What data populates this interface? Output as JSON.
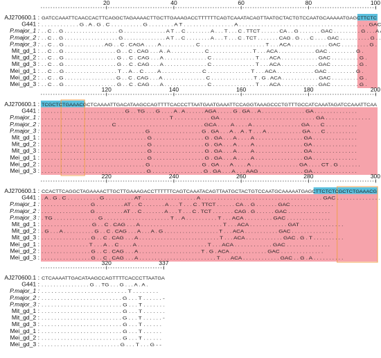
{
  "blocks": [
    {
      "pos_start": 1,
      "ticks": [
        {
          "pos": 20,
          "label": "20"
        },
        {
          "pos": 40,
          "label": "40"
        },
        {
          "pos": 60,
          "label": "60"
        },
        {
          "pos": 80,
          "label": "80"
        },
        {
          "pos": 100,
          "label": "100"
        }
      ],
      "rows": [
        {
          "label": "AJ270600.1 :",
          "italic": false,
          "seq": "GATCCAAATTCAACCACTTCAGGCTAGAAAACTTGCTTGAAAGACCTTTTTTCAGTCAAATACAGTTAATGCTACTGTCCAATGCAAAAATGAGCTTCTC"
        },
        {
          "label": "G441 :",
          "italic": false,
          "seq": ". . . . . . . . . . . . G . A . G . C . . . . . . . . . . G . . . . . . . . A T . . . . . . . . . . . . . . . . A . . . . . . . . . . . . . . . . . . . . . . . . . . . . . . . . . . . . . . . . . GAC . . . . ."
        },
        {
          "label": "P.major_1 :",
          "italic": true,
          "seq": ". . C . . G . . . . . . . . . . . . . . . . . . G . . . . . . . . . . . . . . A T . . C . . . . . . . . A . . . T . . . C . TTCT . . . . . . CA . . G . . . . . . . GAC . . . . . . . . . G . . . A A"
        },
        {
          "label": "P.major_2 :",
          "italic": true,
          "seq": ". . C . . G . . . . . . . . . . . . . . . . . . G . . . . . . . . . . . . . . A T . . C . . . . . . . . A . . . T . . . C . TCT . . . . . . . CAG . G . . . C . . . . GAC . . . . . . . . . . G . . ."
        },
        {
          "label": "P.major_3 :",
          "italic": true,
          "seq": ". . C . . G . . . . . . . . . . . . . AG . . C . CAGA . . . . A . . . . . . . . . . . C . . . . . . . . . . . . . . . . . . . . . T . . . ACA . . . . . . . . . . . . GAC . . . . . . . . . G ."
        },
        {
          "label": "Mit_gd_1 :",
          "italic": false,
          "seq": ". . C . . G . . . . . . . . . . . . . . . . . G . . C . CAG . . . A . A . . . . . . . . . . . C . . . . . . . . . . . . . . T . . . ACA . . . . . . . . . . . . GAC . . . . . . . . . G ."
        },
        {
          "label": "Mit_gd_2 :",
          "italic": false,
          "seq": ". . C . . G . . . . . . . . . . . . . . . . . G . . C . CAG . . . A . . . . . . . . . . . . . . C . . . . . . . . . . . . . . T . . . ACA . . . . . . . . . . . . GAC . . . . . . . . . G ."
        },
        {
          "label": "Mit_gd_3 :",
          "italic": false,
          "seq": ". . C . . G . . . . . . . . . . . . . . . . . G . . C . CAG . . . A . . . . . . . . . . . . . . C . . . . . . . . . . . . . . T . . . ACA . . . . . . . . . . . . GAC . . . . . . . . . G ."
        },
        {
          "label": "Mei_gd_1 :",
          "italic": false,
          "seq": ". . C . . G . . . . . . . . . . . . . . . . . T . . A . . C . . . . A . . . . . . . . . . . . . C . . . . . . . . . . . . . . T . . . ACA . . . . . . . . . . . . GAC . . . . . . . . . G ."
        },
        {
          "label": "Mei_gd_2 :",
          "italic": false,
          "seq": ". . C . . G . . . . . . . . . . . . . . . . . G . . C . CAG . . . A . . . . . . . . . . . . . . C . . . . . . . . . . . . . . T . G . ACA . . . . . . . . . . . . GAC . . . . . . . . . G ."
        },
        {
          "label": "Mei_gd_3 :",
          "italic": false,
          "seq": ". . C . . G . . . . . . . . . . . . . . . . . G . . C . CAG . . . A . . . . . . . . . . . . . . C . . . . . . . . . . . . . . T . . . ACA . . . . . . . . . . . . GAC . . . . . . . . . G ."
        }
      ]
    },
    {
      "pos_start": 101,
      "ticks": [
        {
          "pos": 120,
          "label": "120"
        },
        {
          "pos": 140,
          "label": "140"
        },
        {
          "pos": 160,
          "label": "160"
        },
        {
          "pos": 180,
          "label": "180"
        },
        {
          "pos": 200,
          "label": "200"
        }
      ],
      "rows": [
        {
          "label": "AJ270600.1 :",
          "italic": false,
          "seq": "TCGCTCTGAAACGCTCAAAATTGACATAAGCCAGTTTTCACCCTTAATGAATGAAATTCCAGGTAAAGCCCTGTTTGCCATCAAATAGATCCAAATTCAA"
        },
        {
          "label": "G441 :",
          "italic": false,
          "seq": ". . . . . . . . . . . . . . . . . . . . . . . . . . . G . . TG . . . G . . . . A . A . . . . . . AGA . . . . . G . GA . . A . . . . . . . . . . . . . . GA . . . . . . . . . . . . . ."
        },
        {
          "label": "P.major_1 :",
          "italic": true,
          "seq": ". . . . . . . . . . . . . . . . . . . . . . . . . . . . . . . . . . . . . . . T . . . . . . . . . . . GA . . . . . . . . . . . . . . . . . . . . . . . . . . . . . GA . . . . . . . . . . . . . ."
        },
        {
          "label": "P.major_2 :",
          "italic": true,
          "seq": ". . . . . . . . . . . . . . . . . . . . . . C . . . . . . . . . . . . . . . . . . . . . . . . . . . GCA . . . . A . . . . A . . . . . . . . . . . . . . . GA . . . C . . . . . . . . . ."
        },
        {
          "label": "P.major_3 :",
          "italic": true,
          "seq": ". . . . . . . . . . . . . . . . . . . . . . . . . . . . . . . . . G . . . . . . . . . . . . . . . . G . GA . . . A . . A . T . . . A . . . . . . . . . . . GA . . . C . . . . . . . . . ."
        },
        {
          "label": "Mit_gd_1 :",
          "italic": false,
          "seq": ". . . . . . . . . . . . . . . . . . . . . . . . . . . . . . . . . G . . . . . . . . . . . . . . . . G . GA . . . A . . . . A . . . . . . . . . . . . . . . GA . . . . . . . . . . . . . ."
        },
        {
          "label": "Mit_gd_2 :",
          "italic": false,
          "seq": ". . . . . . . . . . . . . . . . . . . . . . . . . . . . . . . . . G . . . . . . . . . . . . . . . . G . GA . . . A . . . . A . . . . . . . . . . . . . . . GA . . . . . . . . . . . . . ."
        },
        {
          "label": "Mit_gd_3 :",
          "italic": false,
          "seq": ". . . . . . . . . . . . . . . . . . . . . . . . . . . . . . . . . G . . . . . . . . . . . . . . . . G . GA . . . A . . . . A . . . . . . . . . . . . . . . GA . . . . . . . . . . . . . ."
        },
        {
          "label": "Mei_gd_1 :",
          "italic": false,
          "seq": ". . . . . . . . . . . . . . . . . . . . . . . . . . . . . . . . . G . . . . . . . . . . . . . . . . G . GA . . . A . . . . A . . . . . . . . . . . . . . . GA . . . . . . . . . . . . . ."
        },
        {
          "label": "Mei_gd_2 :",
          "italic": false,
          "seq": ". . . . . . . . . . . . . . . . . . . . . . . . . . . . . . . . . G . . . . . . . . . . . . . . . . G . GA . . . A . . . . A . . . . . . . . . . . . . . . GA . . . . CT . G . . . . . . ."
        },
        {
          "label": "Mei_gd_3 :",
          "italic": false,
          "seq": ". . . . . . . . . . . . . . . . . . . . . . . . . . . . . . . . . G . . . . . . . . . . . . . . . . G . GA . . . A . . . AAG . . . . . . . . . . . . . . GA . . . . . . . . . . . . . ."
        }
      ]
    },
    {
      "pos_start": 201,
      "ticks": [
        {
          "pos": 220,
          "label": "220"
        },
        {
          "pos": 240,
          "label": "240"
        },
        {
          "pos": 260,
          "label": "260"
        },
        {
          "pos": 280,
          "label": "280"
        },
        {
          "pos": 300,
          "label": "300"
        }
      ],
      "rows": [
        {
          "label": "AJ270600.1 :",
          "italic": false,
          "seq": "CCACTTCAGGCTAGAAAACTTGCTTGAAAGACCTTTTTTCAGTCAAATACAGTTAATGCTACTGTCCAATGCAAAAATGAGCTTCTCTCGCTCTGAAACG"
        },
        {
          "label": "G441 :",
          "italic": false,
          "seq": ". A . G . C . . . . . . . . . . G . . . . . . . . . AT . . . . . . . . . . . . . . . . . A . . . . . . . . . . . . . . . . . . . . . . . . . . . . . . . . . . . . . . GAC . . . . . . . . . . . . . ."
        },
        {
          "label": "P.major_1 :",
          "italic": true,
          "seq": ". . . . . . . . . . . . . . . . G . . . . . . . . . AT . . C . . . . . . . A . . . T . . . C . TTCT . . . . . . CA . . G . . . . . . . GAC . . . . . . . . . . . . . ."
        },
        {
          "label": "P.major_2 :",
          "italic": true,
          "seq": ". . . . . . . . . . . . . . . . G . . . . . . . . . AT . . C . . . . . . . A . . . T . . . C . TCT . . . . . . . CAG . G . . . . . . GAC . . . . . . . . . . . . . ."
        },
        {
          "label": "P.major_3 :",
          "italic": true,
          "seq": ". TG . . . . . . . . . . . . . . G . . . . . . . . . . . . . . . . . . . . . T . . A . . . . . . . . . . T . . . ACA . . . . . . . . . GAC . . . . . . . . . . . . . ."
        },
        {
          "label": "Mit_gd_1 :",
          "italic": false,
          "seq": ". . . . . . . . . . . . . . . . G . . C . CAG . . . A . . . . . . . . . . . . . . . . . . . . . . . . . . T . . . ACA . . . . . . . . . . . . GAT . . . . . . . . . . . . . ."
        },
        {
          "label": "Mit_gd_2 :",
          "italic": false,
          "seq": ". G . . . A . . . . . . . . . . G . . C . CAG . . . A . . . A . G . . . . . . . . . . . . . . . . . . T . . . ACA . . . . . . . . . . . GAC . . . . . . . . . . . . . ."
        },
        {
          "label": "Mit_gd_3 :",
          "italic": false,
          "seq": ". . . . . . . . . . . . . . . . G . . C . CAG . . . A . . . . . . . . . . . . . . . . . . . . . . . . . . T . . . ACA . . . . . . . . . . . . GAC . G . T . . . . . . . . . ."
        },
        {
          "label": "Mei_gd_1 :",
          "italic": false,
          "seq": ". . . . . . . . . . . . . . . T . . . A . . C . . . . A . . . . . . . . . . . . . . . . . . . . . . T . . . ACA . . . . . . . . . . . . GAC . . . . . . . . . . . . . ."
        },
        {
          "label": "Mei_gd_2 :",
          "italic": false,
          "seq": ". . . . . . . . . . . . . . . . G . . C . CAG . . . A . . . . . . . . . . . . . . . . . . . . T . G . ACA . . . . . . . . . . . . GAC . . . . . . . . . . . . . ."
        },
        {
          "label": "Mei_gd_3 :",
          "italic": false,
          "seq": ". . . . . . . . . . . . . . . . G . . C . CAG . . . A . . . . . . . . . . . . . . . . . . . . . . . . . T . . . ACA . . . . . . . . . . . . GAC . . G . A . . . . . . . . . ."
        }
      ]
    },
    {
      "pos_start": 301,
      "ticks": [
        {
          "pos": 320,
          "label": "320"
        },
        {
          "pos": 337,
          "label": "337"
        }
      ],
      "rows": [
        {
          "label": "AJ270600.1 :",
          "italic": false,
          "seq": "CTCAAAATTGACATAAGCCAGTTTTCACCCTTAATGA"
        },
        {
          "label": "G441 :",
          "italic": false,
          "seq": ". . . . . . . . . . . . . . . . G . . TG . . . G . . . A . A ."
        },
        {
          "label": "P.major_1 :",
          "italic": true,
          "seq": ". . . . . . . . . . . . . . . . . . . . . . . . . . T . . . . . . . ."
        },
        {
          "label": "P.major_2 :",
          "italic": true,
          "seq": ". . . . . . . . . . . . . . . . . . . . . . . . . G . . . T . . . . . . -"
        },
        {
          "label": "P.major_3 :",
          "italic": true,
          "seq": ". . . . . . . . . . . . . . . . . . . . . . . . . G . . . T . . . . . . ."
        },
        {
          "label": "Mit_gd_1 :",
          "italic": false,
          "seq": ". . . . . . . . . . . . . . . . . . . . . . . . . G . . . T . . . . . . ."
        },
        {
          "label": "Mit_gd_2 :",
          "italic": false,
          "seq": ". . . . . . . . . . . . . . . . . . . . . . . . . G . . . T . . . . . . -"
        },
        {
          "label": "Mit_gd_3 :",
          "italic": false,
          "seq": ". . . . . . . . . . . . . . . . . . . . . . . . . G . . . T . . . . . ."
        },
        {
          "label": "Mei_gd_1 :",
          "italic": false,
          "seq": ". . . . . . . . . . . . . . . . . . . . . . . . . G . . . T . . . . . ."
        },
        {
          "label": "Mei_gd_2 :",
          "italic": false,
          "seq": ". . . . . . . . . . . . . . . . . . . . . . . . . G . . . T . . . . . ."
        },
        {
          "label": "Mei_gd_3 :",
          "italic": false,
          "seq": ". . . . . . . . . . . . . . . . . . . . . . . . . G . . . T . . . G - -"
        }
      ]
    }
  ],
  "highlights": {
    "primer_color": "#5bc0de",
    "region_color": "#f6a3ab",
    "box_color": "#f0a050",
    "primer_ranges": [
      [
        95,
        100
      ],
      [
        101,
        113
      ],
      [
        282,
        300
      ]
    ],
    "region_ranges": [
      [
        95,
        100
      ],
      [
        101,
        200
      ],
      [
        201,
        300
      ]
    ],
    "box_ranges": [
      [
        107,
        113
      ],
      [
        289,
        300
      ]
    ]
  }
}
